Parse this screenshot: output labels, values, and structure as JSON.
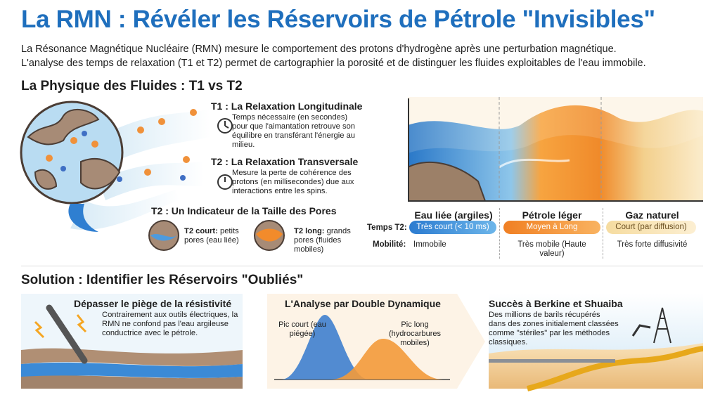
{
  "header": {
    "title": "La RMN : Révéler les Réservoirs de Pétrole \"Invisibles\"",
    "intro": [
      "La Résonance Magnétique Nucléaire (RMN) mesure le comportement des protons d'hydrogène après une perturbation magnétique.",
      "L'analyse des temps de relaxation (T1 et T2) permet de cartographier la porosité et de distinguer les fluides exploitables de l'eau immobile."
    ]
  },
  "physics": {
    "heading": "La Physique des Fluides : T1 vs T2",
    "t1": {
      "title": "T1 : La Relaxation Longitudinale",
      "text": "Temps nécessaire (en secondes) pour que l'aimantation retrouve son équilibre en transférant l'énergie au milieu."
    },
    "t2": {
      "title": "T2 : La Relaxation Transversale",
      "text": "Mesure la perte de cohérence des protons (en millisecondes) due aux interactions entre les spins."
    },
    "pores": {
      "heading": "T2 : Un Indicateur de la Taille des Pores",
      "short": {
        "label": "T2 court:",
        "text": "petits pores (eau liée)"
      },
      "long": {
        "label": "T2 long:",
        "text": "grands pores (fluides mobiles)"
      }
    }
  },
  "fluids": {
    "columns": [
      "Eau liée (argiles)",
      "Pétrole léger",
      "Gaz naturel"
    ],
    "row_labels": [
      "Temps T2:",
      "Mobilité:"
    ],
    "t2": [
      "Très court (< 10 ms)",
      "Moyen à Long",
      "Court (par diffusion)"
    ],
    "mobility": [
      "Immobile",
      "Très mobile (Haute valeur)",
      "Très forte diffusivité"
    ]
  },
  "solution": {
    "heading": "Solution : Identifier les Réservoirs \"Oubliés\"",
    "cards": [
      {
        "title": "Dépasser le piège de la résistivité",
        "text": "Contrairement aux outils électriques, la RMN ne confond pas l'eau argileuse conductrice avec le pétrole."
      },
      {
        "title": "L'Analyse par Double Dynamique",
        "peaks": [
          "Pic court (eau piégée)",
          "Pic long (hydrocarbures mobiles)"
        ]
      },
      {
        "title": "Succès à Berkine et Shuaiba",
        "text": "Des millions de barils récupérés dans des zones initialement classées comme \"stériles\" par les méthodes classiques."
      }
    ]
  }
}
